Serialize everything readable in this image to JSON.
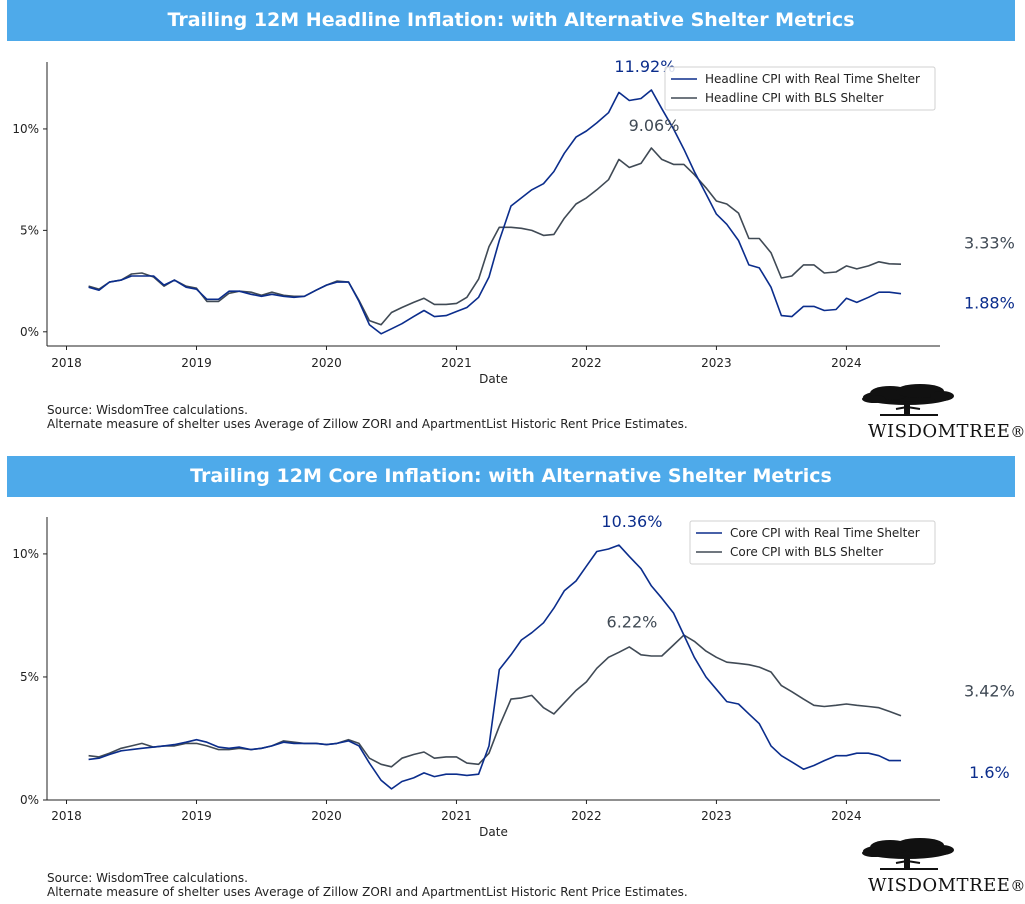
{
  "header_top": "Trailing 12M Headline Inflation: with Alternative Shelter Metrics",
  "header_bottom": "Trailing 12M Core Inflation: with Alternative Shelter Metrics",
  "footnote": {
    "line1": "Source: WisdomTree calculations.",
    "line2": "Alternate measure of shelter uses Average of Zillow ZORI and ApartmentList Historic Rent Price Estimates."
  },
  "logo": {
    "text": "WISDOMTREE",
    "icon": "tree-icon",
    "mark": "®"
  },
  "colors": {
    "banner": "#4eaaea",
    "real_time": "#0b2d8c",
    "bls": "#404a55"
  },
  "chart_data": [
    {
      "type": "line",
      "title": "Trailing 12M Headline Inflation: with Alternative Shelter Metrics",
      "xlabel": "Date",
      "ylabel": "",
      "ylim": [
        -0.7,
        13.3
      ],
      "xlim": [
        2017.85,
        2024.72
      ],
      "x_ticks": [
        2018,
        2019,
        2020,
        2021,
        2022,
        2023,
        2024
      ],
      "x_tick_labels": [
        "2018",
        "2019",
        "2020",
        "2021",
        "2022",
        "2023",
        "2024"
      ],
      "y_ticks": [
        0,
        5,
        10
      ],
      "y_tick_labels": [
        "0%",
        "5%",
        "10%"
      ],
      "legend_position": "top-right",
      "x": [
        2018.17,
        2018.25,
        2018.33,
        2018.42,
        2018.5,
        2018.58,
        2018.67,
        2018.75,
        2018.83,
        2018.92,
        2019.0,
        2019.08,
        2019.17,
        2019.25,
        2019.33,
        2019.42,
        2019.5,
        2019.58,
        2019.67,
        2019.75,
        2019.83,
        2019.92,
        2020.0,
        2020.08,
        2020.17,
        2020.25,
        2020.33,
        2020.42,
        2020.5,
        2020.58,
        2020.67,
        2020.75,
        2020.83,
        2020.92,
        2021.0,
        2021.08,
        2021.17,
        2021.25,
        2021.33,
        2021.42,
        2021.5,
        2021.58,
        2021.67,
        2021.75,
        2021.83,
        2021.92,
        2022.0,
        2022.08,
        2022.17,
        2022.25,
        2022.33,
        2022.42,
        2022.5,
        2022.58,
        2022.67,
        2022.75,
        2022.83,
        2022.92,
        2023.0,
        2023.08,
        2023.17,
        2023.25,
        2023.33,
        2023.42,
        2023.5,
        2023.58,
        2023.67,
        2023.75,
        2023.83,
        2023.92,
        2024.0,
        2024.08,
        2024.17,
        2024.25,
        2024.33,
        2024.42
      ],
      "series": [
        {
          "name": "Headline CPI with Real Time Shelter",
          "color": "#0b2d8c",
          "values": [
            2.2,
            2.05,
            2.45,
            2.55,
            2.75,
            2.75,
            2.75,
            2.3,
            2.55,
            2.2,
            2.1,
            1.6,
            1.6,
            2.0,
            2.0,
            1.85,
            1.75,
            1.85,
            1.75,
            1.7,
            1.75,
            2.05,
            2.3,
            2.45,
            2.45,
            1.5,
            0.35,
            -0.1,
            0.15,
            0.4,
            0.75,
            1.05,
            0.75,
            0.8,
            1.0,
            1.2,
            1.7,
            2.7,
            4.5,
            6.2,
            6.6,
            7.0,
            7.3,
            7.9,
            8.8,
            9.6,
            9.9,
            10.3,
            10.8,
            11.8,
            11.4,
            11.5,
            11.92,
            11.0,
            10.0,
            9.0,
            7.9,
            6.8,
            5.8,
            5.3,
            4.5,
            3.3,
            3.15,
            2.2,
            0.8,
            0.75,
            1.25,
            1.25,
            1.05,
            1.1,
            1.65,
            1.45,
            1.7,
            1.95,
            1.95,
            1.88
          ]
        },
        {
          "name": "Headline CPI with BLS Shelter",
          "color": "#404a55",
          "values": [
            2.25,
            2.1,
            2.45,
            2.55,
            2.85,
            2.9,
            2.7,
            2.25,
            2.55,
            2.25,
            2.15,
            1.5,
            1.5,
            1.9,
            2.0,
            1.95,
            1.8,
            1.95,
            1.8,
            1.75,
            1.75,
            2.05,
            2.3,
            2.5,
            2.45,
            1.55,
            0.55,
            0.35,
            0.95,
            1.2,
            1.45,
            1.65,
            1.35,
            1.35,
            1.4,
            1.7,
            2.6,
            4.2,
            5.15,
            5.15,
            5.1,
            5.0,
            4.75,
            4.8,
            5.6,
            6.3,
            6.6,
            7.0,
            7.5,
            8.5,
            8.1,
            8.3,
            9.06,
            8.5,
            8.25,
            8.25,
            7.75,
            7.1,
            6.45,
            6.3,
            5.85,
            4.6,
            4.6,
            3.9,
            2.65,
            2.75,
            3.3,
            3.3,
            2.9,
            2.95,
            3.25,
            3.1,
            3.25,
            3.45,
            3.35,
            3.33
          ]
        }
      ],
      "annotations": [
        {
          "text": "11.92%",
          "x": 2022.45,
          "y": 12.8,
          "color": "#0b2d8c"
        },
        {
          "text": "9.06%",
          "x": 2022.52,
          "y": 9.9,
          "color": "#404a55"
        },
        {
          "text": "3.33%",
          "x": 2025.1,
          "y": 4.1,
          "color": "#404a55"
        },
        {
          "text": "1.88%",
          "x": 2025.1,
          "y": 1.15,
          "color": "#0b2d8c"
        }
      ]
    },
    {
      "type": "line",
      "title": "Trailing 12M Core Inflation: with Alternative Shelter Metrics",
      "xlabel": "Date",
      "ylabel": "",
      "ylim": [
        0,
        11.5
      ],
      "xlim": [
        2017.85,
        2024.72
      ],
      "x_ticks": [
        2018,
        2019,
        2020,
        2021,
        2022,
        2023,
        2024
      ],
      "x_tick_labels": [
        "2018",
        "2019",
        "2020",
        "2021",
        "2022",
        "2023",
        "2024"
      ],
      "y_ticks": [
        0,
        5,
        10
      ],
      "y_tick_labels": [
        "0%",
        "5%",
        "10%"
      ],
      "legend_position": "top-right",
      "x": [
        2018.17,
        2018.25,
        2018.33,
        2018.42,
        2018.5,
        2018.58,
        2018.67,
        2018.75,
        2018.83,
        2018.92,
        2019.0,
        2019.08,
        2019.17,
        2019.25,
        2019.33,
        2019.42,
        2019.5,
        2019.58,
        2019.67,
        2019.75,
        2019.83,
        2019.92,
        2020.0,
        2020.08,
        2020.17,
        2020.25,
        2020.33,
        2020.42,
        2020.5,
        2020.58,
        2020.67,
        2020.75,
        2020.83,
        2020.92,
        2021.0,
        2021.08,
        2021.17,
        2021.25,
        2021.33,
        2021.42,
        2021.5,
        2021.58,
        2021.67,
        2021.75,
        2021.83,
        2021.92,
        2022.0,
        2022.08,
        2022.17,
        2022.25,
        2022.33,
        2022.42,
        2022.5,
        2022.58,
        2022.67,
        2022.75,
        2022.83,
        2022.92,
        2023.0,
        2023.08,
        2023.17,
        2023.25,
        2023.33,
        2023.42,
        2023.5,
        2023.58,
        2023.67,
        2023.75,
        2023.83,
        2023.92,
        2024.0,
        2024.08,
        2024.17,
        2024.25,
        2024.33,
        2024.42
      ],
      "series": [
        {
          "name": "Core CPI with Real Time Shelter",
          "color": "#0b2d8c",
          "values": [
            1.65,
            1.7,
            1.85,
            2.0,
            2.05,
            2.1,
            2.15,
            2.2,
            2.25,
            2.35,
            2.45,
            2.35,
            2.15,
            2.1,
            2.15,
            2.05,
            2.1,
            2.2,
            2.35,
            2.3,
            2.3,
            2.3,
            2.25,
            2.3,
            2.4,
            2.2,
            1.5,
            0.8,
            0.45,
            0.75,
            0.9,
            1.1,
            0.95,
            1.05,
            1.05,
            1.0,
            1.05,
            2.2,
            5.3,
            5.9,
            6.5,
            6.8,
            7.2,
            7.8,
            8.5,
            8.9,
            9.5,
            10.1,
            10.2,
            10.36,
            9.9,
            9.4,
            8.7,
            8.2,
            7.6,
            6.7,
            5.8,
            5.0,
            4.5,
            4.0,
            3.9,
            3.5,
            3.1,
            2.2,
            1.8,
            1.55,
            1.25,
            1.4,
            1.6,
            1.8,
            1.8,
            1.9,
            1.9,
            1.8,
            1.6,
            1.6
          ]
        },
        {
          "name": "Core CPI with BLS Shelter",
          "color": "#404a55",
          "values": [
            1.8,
            1.75,
            1.9,
            2.1,
            2.2,
            2.3,
            2.15,
            2.2,
            2.2,
            2.3,
            2.3,
            2.2,
            2.05,
            2.05,
            2.1,
            2.05,
            2.1,
            2.2,
            2.4,
            2.35,
            2.3,
            2.3,
            2.25,
            2.3,
            2.45,
            2.3,
            1.7,
            1.45,
            1.35,
            1.7,
            1.85,
            1.95,
            1.7,
            1.75,
            1.75,
            1.5,
            1.45,
            1.9,
            3.0,
            4.1,
            4.15,
            4.25,
            3.75,
            3.5,
            3.95,
            4.45,
            4.8,
            5.35,
            5.8,
            6.0,
            6.22,
            5.9,
            5.85,
            5.85,
            6.3,
            6.7,
            6.45,
            6.05,
            5.8,
            5.6,
            5.55,
            5.5,
            5.4,
            5.2,
            4.65,
            4.4,
            4.1,
            3.85,
            3.8,
            3.85,
            3.9,
            3.85,
            3.8,
            3.75,
            3.6,
            3.42
          ]
        }
      ],
      "annotations": [
        {
          "text": "10.36%",
          "x": 2022.35,
          "y": 11.1,
          "color": "#0b2d8c"
        },
        {
          "text": "6.22%",
          "x": 2022.35,
          "y": 7.0,
          "color": "#404a55"
        },
        {
          "text": "3.42%",
          "x": 2025.1,
          "y": 4.2,
          "color": "#404a55"
        },
        {
          "text": "1.6%",
          "x": 2025.1,
          "y": 0.9,
          "color": "#0b2d8c"
        }
      ]
    }
  ]
}
